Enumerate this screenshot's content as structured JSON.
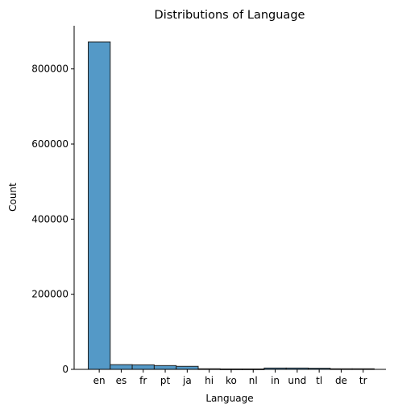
{
  "chart_data": {
    "type": "bar",
    "title": "Distributions of Language",
    "xlabel": "Language",
    "ylabel": "Count",
    "categories": [
      "en",
      "es",
      "fr",
      "pt",
      "ja",
      "hi",
      "ko",
      "nl",
      "in",
      "und",
      "tl",
      "de",
      "tr"
    ],
    "values": [
      872000,
      12500,
      12000,
      10000,
      8000,
      1500,
      1000,
      1000,
      3500,
      3500,
      3000,
      1500,
      1500
    ],
    "ylim": [
      0,
      915000
    ],
    "yticks": [
      0,
      200000,
      400000,
      600000,
      800000
    ],
    "ytick_labels": [
      "0",
      "200000",
      "400000",
      "600000",
      "800000"
    ],
    "grid": false,
    "bar_color": "#5499c7",
    "edge_color": "#1f1f1f"
  }
}
